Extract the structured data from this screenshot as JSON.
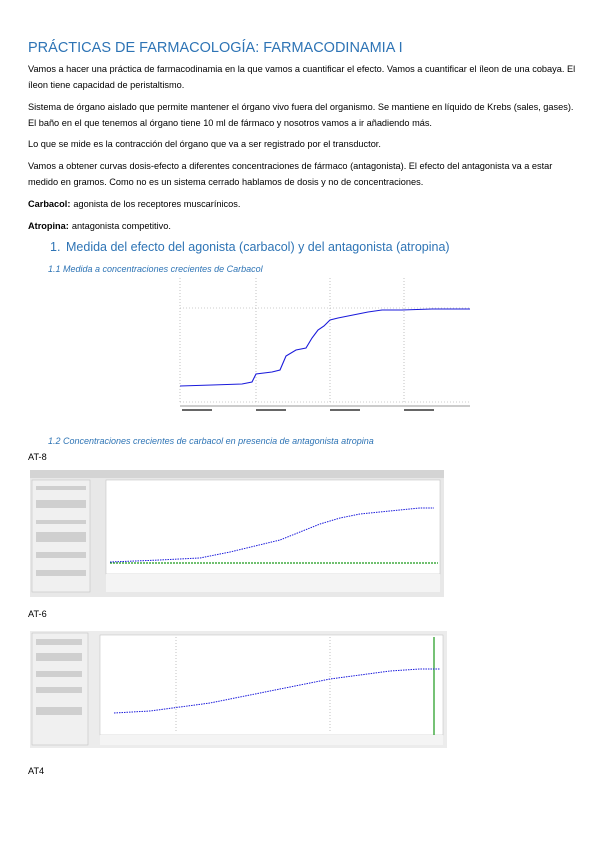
{
  "title": "PRÁCTICAS DE FARMACOLOGÍA: FARMACODINAMIA I",
  "paragraphs": [
    "Vamos a hacer una práctica de farmacodinamia en la que vamos a cuantificar el efecto. Vamos a cuantificar el íleon de una cobaya. El íleon tiene capacidad de peristaltismo.",
    "Sistema de órgano aislado que permite mantener el órgano vivo fuera del organismo. Se mantiene en líquido de Krebs (sales, gases). El baño en el que tenemos al órgano tiene 10 ml de fármaco y nosotros vamos a ir añadiendo más.",
    "Lo que se mide es la contracción del órgano que va a ser registrado por el transductor.",
    "Vamos a obtener curvas dosis-efecto a diferentes concentraciones de fármaco (antagonista). El efecto del antagonista va a estar medido en gramos. Como no es un sistema cerrado hablamos de dosis y no de concentraciones."
  ],
  "definitions": [
    {
      "term": "Carbacol:",
      "text": "agonista de los receptores muscarínicos."
    },
    {
      "term": "Atropina:",
      "text": "antagonista competitivo."
    }
  ],
  "section": {
    "number": "1.",
    "title": "Medida del efecto del agonista (carbacol) y del antagonista (atropina)"
  },
  "subsections": [
    "1.1 Medida a concentraciones crecientes de Carbacol",
    "1.2  Concentraciones crecientes de carbacol en presencia de antagonista atropina"
  ],
  "figure_labels": [
    "AT-8",
    "AT-6",
    "AT4"
  ]
}
